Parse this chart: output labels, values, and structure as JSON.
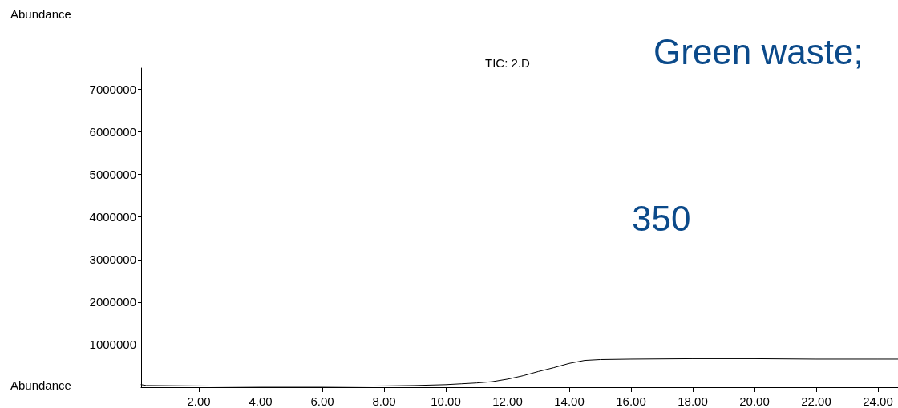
{
  "chart_data": {
    "type": "line",
    "title": "TIC: 2.D",
    "ylabel": "Abundance",
    "xlabel": "Abundance",
    "annotations": [
      "Green waste;",
      "350"
    ],
    "x": [
      0.13,
      0.3,
      2,
      4,
      6,
      8,
      9,
      10,
      10.5,
      11,
      11.5,
      12,
      12.5,
      13,
      13.5,
      14,
      14.5,
      15,
      16,
      18,
      20,
      22,
      24,
      24.65
    ],
    "series": [
      {
        "color": "#000000",
        "values": [
          60000,
          40000,
          30000,
          20000,
          20000,
          30000,
          40000,
          60000,
          80000,
          100000,
          130000,
          190000,
          270000,
          370000,
          460000,
          560000,
          630000,
          650000,
          660000,
          670000,
          670000,
          660000,
          660000,
          660000
        ]
      }
    ],
    "xlim": [
      0.13,
      24.65
    ],
    "xticks": [
      {
        "value": 2,
        "label": "2.00"
      },
      {
        "value": 4,
        "label": "4.00"
      },
      {
        "value": 6,
        "label": "6.00"
      },
      {
        "value": 8,
        "label": "8.00"
      },
      {
        "value": 10,
        "label": "10.00"
      },
      {
        "value": 12,
        "label": "12.00"
      },
      {
        "value": 14,
        "label": "14.00"
      },
      {
        "value": 16,
        "label": "16.00"
      },
      {
        "value": 18,
        "label": "18.00"
      },
      {
        "value": 20,
        "label": "20.00"
      },
      {
        "value": 22,
        "label": "22.00"
      },
      {
        "value": 24,
        "label": "24.00"
      }
    ],
    "ylim": [
      0,
      7500000
    ],
    "yticks": [
      1000000,
      2000000,
      3000000,
      4000000,
      5000000,
      6000000,
      7000000
    ],
    "grid": false,
    "marker": "none",
    "line_style": "solid"
  }
}
